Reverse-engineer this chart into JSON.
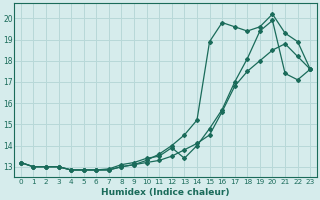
{
  "xlabel": "Humidex (Indice chaleur)",
  "bg_color": "#d6ecec",
  "grid_color": "#b8d8d8",
  "line_color": "#1a6b5a",
  "xlim": [
    -0.5,
    23.5
  ],
  "ylim": [
    12.5,
    20.7
  ],
  "xticks": [
    0,
    1,
    2,
    3,
    4,
    5,
    6,
    7,
    8,
    9,
    10,
    11,
    12,
    13,
    14,
    15,
    16,
    17,
    18,
    19,
    20,
    21,
    22,
    23
  ],
  "yticks": [
    13,
    14,
    15,
    16,
    17,
    18,
    19,
    20
  ],
  "curve1_x": [
    0,
    1,
    2,
    3,
    4,
    5,
    6,
    7,
    8,
    9,
    10,
    11,
    12,
    13,
    14,
    15,
    16,
    17,
    18,
    19,
    20,
    21,
    22,
    23
  ],
  "curve1_y": [
    13.2,
    13.0,
    13.0,
    13.0,
    12.85,
    12.85,
    12.85,
    12.85,
    13.0,
    13.1,
    13.2,
    13.3,
    13.5,
    13.8,
    14.1,
    14.5,
    15.6,
    16.8,
    17.5,
    18.0,
    18.5,
    18.8,
    18.2,
    17.6
  ],
  "curve2_x": [
    0,
    1,
    2,
    3,
    4,
    5,
    6,
    7,
    8,
    9,
    10,
    11,
    12,
    13,
    14,
    15,
    16,
    17,
    18,
    19,
    20,
    21,
    22,
    23
  ],
  "curve2_y": [
    13.2,
    13.0,
    13.0,
    13.0,
    12.85,
    12.85,
    12.85,
    12.85,
    13.0,
    13.1,
    13.3,
    13.6,
    14.0,
    14.5,
    15.2,
    18.9,
    19.8,
    19.6,
    19.4,
    19.6,
    20.2,
    19.3,
    18.9,
    17.6
  ],
  "curve3_x": [
    0,
    1,
    2,
    3,
    4,
    5,
    6,
    7,
    8,
    9,
    10,
    11,
    12,
    13,
    14,
    15,
    16,
    17,
    18,
    19,
    20,
    21,
    22,
    23
  ],
  "curve3_y": [
    13.2,
    13.0,
    13.0,
    13.0,
    12.85,
    12.85,
    12.85,
    12.9,
    13.1,
    13.2,
    13.4,
    13.5,
    13.9,
    13.4,
    14.0,
    14.8,
    15.7,
    17.0,
    18.1,
    19.4,
    19.9,
    17.4,
    17.1,
    17.6
  ]
}
